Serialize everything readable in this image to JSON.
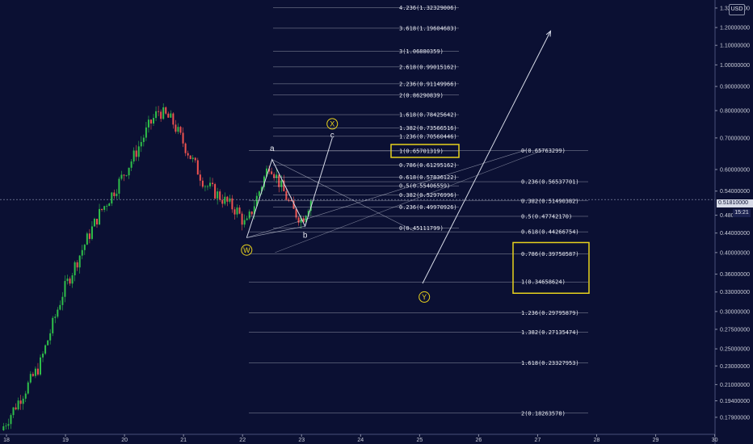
{
  "header": {
    "currency_button": "USD"
  },
  "current_price": {
    "value": "0.51810000",
    "countdown": "15:21"
  },
  "colors": {
    "background": "#0b1033",
    "bull": "#26a69a",
    "bull_green": "#2fbf4a",
    "bear": "#ef5350",
    "fib_line": "#c9ccd8",
    "highlight_box": "#e8d21d",
    "wave_lines": "#d7dbe8"
  },
  "chart_data": {
    "type": "candlestick",
    "title": "",
    "xlabel": "",
    "ylabel": "",
    "price_scale": "log",
    "ylim": [
      0.168,
      1.33
    ],
    "x_tick_labels": [
      "18",
      "19",
      "20",
      "21",
      "22",
      "23",
      "24",
      "25",
      "26",
      "27",
      "28",
      "29",
      "30"
    ],
    "y_tick_labels": [
      "1.32000000",
      "1.20000000",
      "1.10000000",
      "1.00000000",
      "0.90000000",
      "0.80000000",
      "0.70000000",
      "0.60000000",
      "0.54000000",
      "0.48000000",
      "0.44000000",
      "0.40000000",
      "0.36000000",
      "0.33000000",
      "0.30000000",
      "0.27500000",
      "0.25000000",
      "0.23000000",
      "0.21000000",
      "0.19400000",
      "0.17900000"
    ],
    "price_path": [
      {
        "day": 17.95,
        "price": 0.168
      },
      {
        "day": 18.6,
        "price": 0.23
      },
      {
        "day": 19.0,
        "price": 0.33
      },
      {
        "day": 19.3,
        "price": 0.4
      },
      {
        "day": 19.6,
        "price": 0.48
      },
      {
        "day": 19.9,
        "price": 0.55
      },
      {
        "day": 20.2,
        "price": 0.64
      },
      {
        "day": 20.45,
        "price": 0.74
      },
      {
        "day": 20.62,
        "price": 0.8
      },
      {
        "day": 20.85,
        "price": 0.76
      },
      {
        "day": 21.1,
        "price": 0.66
      },
      {
        "day": 21.4,
        "price": 0.56
      },
      {
        "day": 21.7,
        "price": 0.52
      },
      {
        "day": 21.95,
        "price": 0.49
      },
      {
        "day": 22.1,
        "price": 0.455
      },
      {
        "day": 22.3,
        "price": 0.53
      },
      {
        "day": 22.5,
        "price": 0.62
      },
      {
        "day": 22.7,
        "price": 0.55
      },
      {
        "day": 22.9,
        "price": 0.49
      },
      {
        "day": 23.05,
        "price": 0.47
      },
      {
        "day": 23.2,
        "price": 0.518
      }
    ],
    "fib_extension": [
      {
        "ratio": "4.236",
        "price": 1.32329006
      },
      {
        "ratio": "3.618",
        "price": 1.19604683
      },
      {
        "ratio": "3",
        "price": 1.06880359
      },
      {
        "ratio": "2.618",
        "price": 0.99015162
      },
      {
        "ratio": "2.236",
        "price": 0.91149966
      },
      {
        "ratio": "2",
        "price": 0.86290839
      },
      {
        "ratio": "1.618",
        "price": 0.78425642
      },
      {
        "ratio": "1.382",
        "price": 0.73566516
      },
      {
        "ratio": "1.236",
        "price": 0.70560446
      },
      {
        "ratio": "1",
        "price": 0.65701319
      },
      {
        "ratio": "0.786",
        "price": 0.61295162
      },
      {
        "ratio": "0.618",
        "price": 0.57836122
      },
      {
        "ratio": "0.5",
        "price": 0.55406559
      },
      {
        "ratio": "0.382",
        "price": 0.52976996
      },
      {
        "ratio": "0.236",
        "price": 0.49970926
      },
      {
        "ratio": "0",
        "price": 0.45111799
      }
    ],
    "fib_retracement": [
      {
        "ratio": "0",
        "price": 0.65763299
      },
      {
        "ratio": "0.236",
        "price": 0.56537701
      },
      {
        "ratio": "0.382",
        "price": 0.51490382
      },
      {
        "ratio": "0.5",
        "price": 0.4774217
      },
      {
        "ratio": "0.618",
        "price": 0.44266754
      },
      {
        "ratio": "0.786",
        "price": 0.39750587
      },
      {
        "ratio": "1",
        "price": 0.34658624
      },
      {
        "ratio": "1.236",
        "price": 0.29795879
      },
      {
        "ratio": "1.382",
        "price": 0.27135474
      },
      {
        "ratio": "1.618",
        "price": 0.23327953
      },
      {
        "ratio": "2",
        "price": 0.18263578
      }
    ],
    "wave_labels": [
      {
        "label": "W",
        "circled": true,
        "day": 22.07,
        "price": 0.405
      },
      {
        "label": "a",
        "circled": false,
        "day": 22.5,
        "price": 0.665
      },
      {
        "label": "b",
        "circled": false,
        "day": 23.06,
        "price": 0.435
      },
      {
        "label": "c",
        "circled": false,
        "day": 23.52,
        "price": 0.71
      },
      {
        "label": "X",
        "circled": true,
        "day": 23.52,
        "price": 0.75
      },
      {
        "label": "Y",
        "circled": true,
        "day": 25.08,
        "price": 0.322
      }
    ],
    "projection": [
      {
        "day": 25.05,
        "price": 0.344
      },
      {
        "day": 27.22,
        "price": 1.18
      }
    ]
  }
}
